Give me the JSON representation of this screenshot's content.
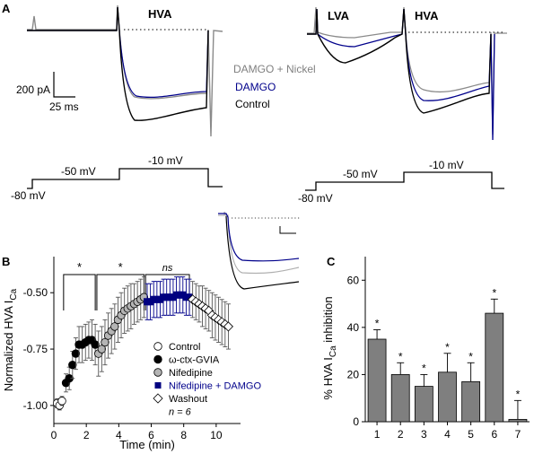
{
  "panel_A": {
    "label": "A",
    "left": {
      "region_label": "HVA",
      "scale_current": "200 pA",
      "scale_time": "25 ms",
      "legend": [
        {
          "label": "DAMGO + Nickel",
          "color": "#808080"
        },
        {
          "label": "DAMGO",
          "color": "#00008B"
        },
        {
          "label": "Control",
          "color": "#000000"
        }
      ],
      "protocol": {
        "holding": "-80 mV",
        "step1": "-50 mV",
        "step2": "-10 mV"
      }
    },
    "right": {
      "region_label_1": "LVA",
      "region_label_2": "HVA",
      "protocol": {
        "holding": "-80 mV",
        "step1": "-50 mV",
        "step2": "-10 mV"
      }
    }
  },
  "chart_data": [
    {
      "panel": "B",
      "type": "scatter",
      "xlabel": "Time (min)",
      "ylabel_main": "Normalized HVA I",
      "ylabel_sub": "Ca",
      "xlim": [
        0,
        11.5
      ],
      "ylim": [
        -1.08,
        -0.34
      ],
      "xticks": [
        0,
        2,
        4,
        6,
        8,
        10
      ],
      "yticks": [
        -1.0,
        -0.75,
        -0.5
      ],
      "ytick_labels": [
        "-1.00",
        "-0.75",
        "-0.50"
      ],
      "significance": [
        "*",
        "*",
        "ns"
      ],
      "n_label": "n = 6",
      "series": [
        {
          "name": "Control",
          "marker": "circle",
          "fill": "#ffffff",
          "stroke": "#000000",
          "x": [
            0.2,
            0.35,
            0.5
          ],
          "y": [
            -0.99,
            -1.0,
            -0.98
          ],
          "err": [
            0.02,
            0.02,
            0.02
          ]
        },
        {
          "name": "ω-ctx-GVIA",
          "marker": "circle",
          "fill": "#000000",
          "stroke": "#000000",
          "x": [
            0.75,
            0.95,
            1.15,
            1.35,
            1.55,
            1.75,
            1.95,
            2.15,
            2.35,
            2.55
          ],
          "y": [
            -0.9,
            -0.88,
            -0.82,
            -0.77,
            -0.73,
            -0.73,
            -0.72,
            -0.71,
            -0.71,
            -0.73
          ],
          "err": [
            0.04,
            0.05,
            0.06,
            0.07,
            0.08,
            0.08,
            0.08,
            0.08,
            0.09,
            0.09
          ]
        },
        {
          "name": "Nifedipine",
          "marker": "circle",
          "fill": "#b4b4b4",
          "stroke": "#000000",
          "x": [
            2.75,
            2.95,
            3.15,
            3.35,
            3.55,
            3.75,
            3.95,
            4.15,
            4.35,
            4.55,
            4.75,
            4.95,
            5.15,
            5.35,
            5.55
          ],
          "y": [
            -0.77,
            -0.75,
            -0.72,
            -0.69,
            -0.67,
            -0.65,
            -0.62,
            -0.6,
            -0.58,
            -0.57,
            -0.56,
            -0.55,
            -0.54,
            -0.53,
            -0.52
          ],
          "err": [
            0.1,
            0.1,
            0.1,
            0.1,
            0.1,
            0.1,
            0.1,
            0.1,
            0.1,
            0.1,
            0.1,
            0.09,
            0.09,
            0.09,
            0.09
          ]
        },
        {
          "name": "Nifedipine + DAMGO",
          "marker": "square",
          "fill": "#000080",
          "stroke": "#000080",
          "x": [
            5.75,
            5.95,
            6.15,
            6.35,
            6.55,
            6.75,
            6.95,
            7.15,
            7.35,
            7.55,
            7.75,
            7.95,
            8.15,
            8.35
          ],
          "y": [
            -0.54,
            -0.54,
            -0.53,
            -0.53,
            -0.53,
            -0.52,
            -0.52,
            -0.52,
            -0.52,
            -0.51,
            -0.51,
            -0.51,
            -0.52,
            -0.52
          ],
          "err": [
            0.08,
            0.08,
            0.08,
            0.08,
            0.08,
            0.08,
            0.08,
            0.08,
            0.08,
            0.08,
            0.08,
            0.08,
            0.08,
            0.08
          ]
        },
        {
          "name": "Washout",
          "marker": "diamond",
          "fill": "#ffffff",
          "stroke": "#000000",
          "x": [
            8.55,
            8.75,
            8.95,
            9.15,
            9.35,
            9.55,
            9.75,
            9.95,
            10.15,
            10.35,
            10.55,
            10.75
          ],
          "y": [
            -0.53,
            -0.54,
            -0.55,
            -0.56,
            -0.57,
            -0.58,
            -0.6,
            -0.61,
            -0.62,
            -0.63,
            -0.64,
            -0.65
          ],
          "err": [
            0.08,
            0.08,
            0.08,
            0.09,
            0.09,
            0.09,
            0.1,
            0.1,
            0.1,
            0.1,
            0.1,
            0.1
          ]
        }
      ]
    },
    {
      "panel": "C",
      "type": "bar",
      "ylabel_main": "% HVA I",
      "ylabel_sub": "Ca",
      "ylabel_tail": " inhibition",
      "ylim": [
        0,
        70
      ],
      "yticks": [
        0,
        20,
        40,
        60
      ],
      "categories": [
        "1",
        "2",
        "3",
        "4",
        "5",
        "6",
        "7"
      ],
      "values": [
        35,
        20,
        15,
        21,
        17,
        46,
        1
      ],
      "errors": [
        4,
        5,
        5,
        8,
        8,
        6,
        8
      ],
      "significance": [
        "*",
        "*",
        "*",
        "*",
        "*",
        "*",
        "*"
      ],
      "bar_color": "#7f7f7f"
    }
  ]
}
